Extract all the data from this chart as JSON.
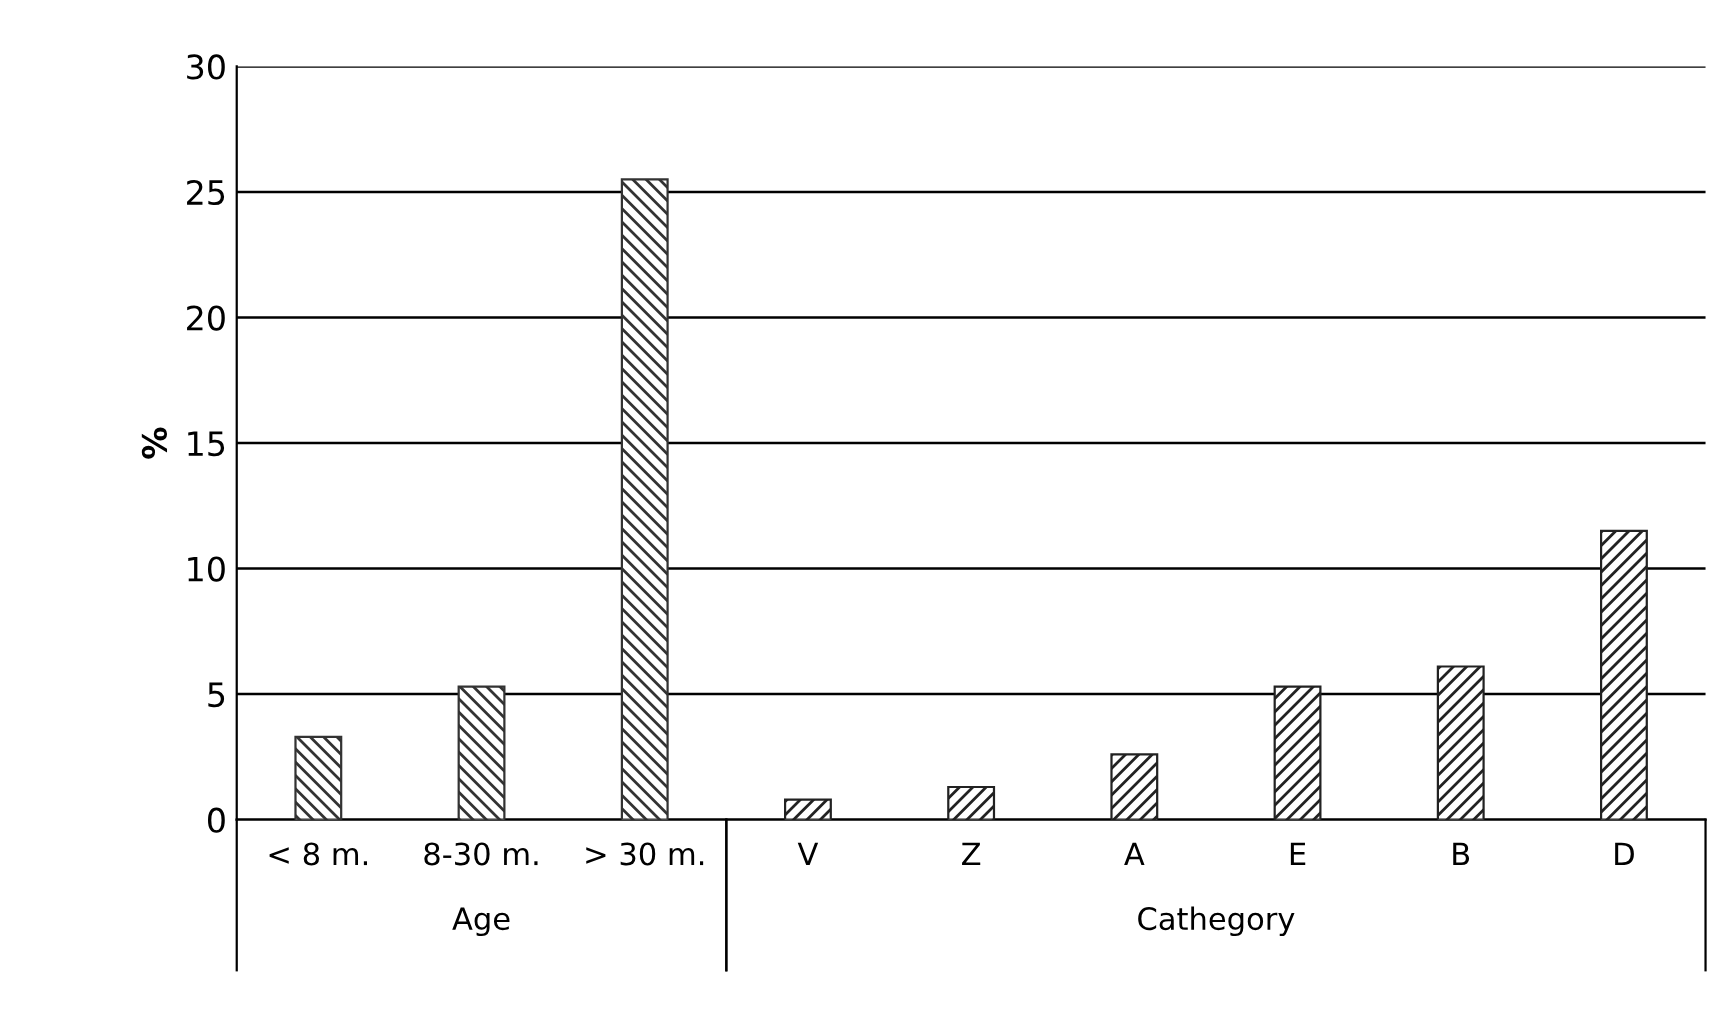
{
  "chart_data": {
    "type": "bar",
    "ylabel": "%",
    "categories": [
      "< 8 m.",
      "8-30 m.",
      "> 30 m.",
      "V",
      "Z",
      "A",
      "E",
      "B",
      "D"
    ],
    "series": [
      {
        "name": "Age",
        "color": "#333333",
        "values": [
          3.3,
          5.3,
          25.5,
          null,
          null,
          null,
          null,
          null,
          null
        ]
      },
      {
        "name": "Cathegory",
        "color": "#222222",
        "values": [
          null,
          null,
          null,
          0.8,
          1.3,
          2.6,
          5.3,
          6.1,
          11.5
        ]
      }
    ],
    "ylim": [
      0,
      30
    ],
    "yticks": [
      0,
      5,
      10,
      15,
      20,
      25,
      30
    ],
    "grid": "y",
    "legend": false
  }
}
